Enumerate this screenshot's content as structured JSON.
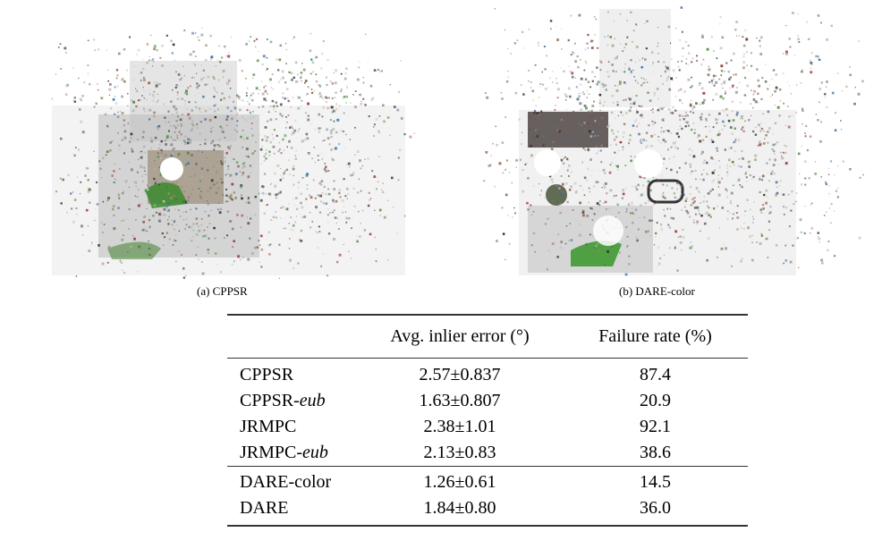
{
  "figures": [
    {
      "id": "a",
      "caption": "(a) CPPSR"
    },
    {
      "id": "b",
      "caption": "(b) DARE-color"
    }
  ],
  "table": {
    "headers": [
      "",
      "Avg. inlier error (°)",
      "Failure rate (%)"
    ],
    "rows": [
      {
        "method": "CPPSR",
        "suffix": "",
        "bold": false,
        "error": "2.57±0.837",
        "failure": "87.4"
      },
      {
        "method": "CPPSR-",
        "suffix": "eub",
        "bold": false,
        "error": "1.63±0.807",
        "failure": "20.9"
      },
      {
        "method": "JRMPC",
        "suffix": "",
        "bold": false,
        "error": "2.38±1.01",
        "failure": "92.1"
      },
      {
        "method": "JRMPC-",
        "suffix": "eub",
        "bold": false,
        "error": "2.13±0.83",
        "failure": "38.6"
      },
      {
        "method": "DARE-color",
        "suffix": "",
        "bold": true,
        "error": "1.26±0.61",
        "failure": "14.5"
      },
      {
        "method": "DARE",
        "suffix": "",
        "bold": true,
        "error": "1.84±0.80",
        "failure": "36.0"
      }
    ]
  }
}
